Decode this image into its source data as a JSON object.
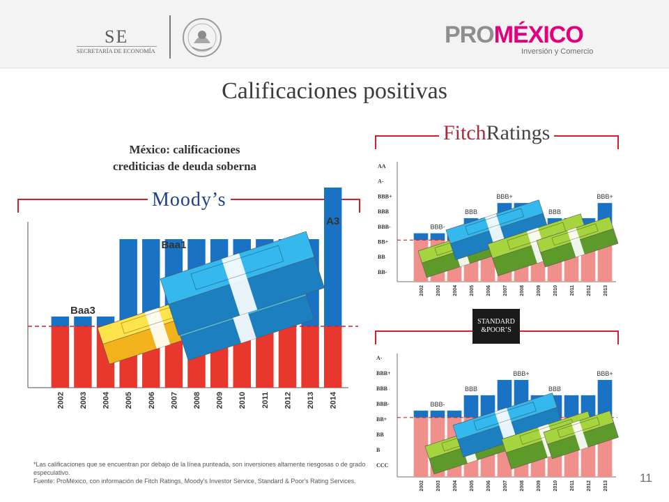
{
  "header": {
    "se_logo_text": "SE",
    "se_logo_subtitle": "SECRETARÍA DE ECONOMÍA",
    "promexico_pro": "PRO",
    "promexico_mexico": "MÉXICO",
    "promexico_tagline": "Inversión y Comercio"
  },
  "title": "Calificaciones positivas",
  "subtitle_line1": "México: calificaciones",
  "subtitle_line2": "crediticias de deuda soberna",
  "logos": {
    "moodys": "Moody’s",
    "fitch_a": "Fitch",
    "fitch_b": "Ratings",
    "sp_line1": "STANDARD",
    "sp_line2": "&POOR’S"
  },
  "colors": {
    "bar_blue": "#1a72c4",
    "bar_red": "#e8372d",
    "bar_pink": "#f0908a",
    "dash_red": "#d0202e",
    "frame_red": "#d11f2e"
  },
  "chart_data": [
    {
      "type": "bar",
      "agency": "Moody's",
      "categories": [
        "2002",
        "2003",
        "2004",
        "2005",
        "2006",
        "2007",
        "2008",
        "2009",
        "2010",
        "2011",
        "2012",
        "2013",
        "2014"
      ],
      "values": [
        1,
        1,
        1,
        4,
        4,
        4,
        4,
        4,
        4,
        4,
        4,
        4,
        6
      ],
      "labels": [
        {
          "category": "2003",
          "text": "Baa3"
        },
        {
          "category": "2007",
          "text": "Baa1"
        },
        {
          "category": "2014",
          "text": "A3"
        }
      ],
      "investment_grade_threshold": 0.5,
      "grid": false
    },
    {
      "type": "bar",
      "agency": "Fitch Ratings",
      "categories": [
        "2002",
        "2003",
        "2004",
        "2005",
        "2006",
        "2007",
        "2008",
        "2009",
        "2010",
        "2011",
        "2012",
        "2013"
      ],
      "y_ticks": [
        "AA",
        "A-",
        "BBB+",
        "BBB",
        "BBB-",
        "BB+",
        "BB",
        "BB-"
      ],
      "values": [
        "BBB-",
        "BBB-",
        "BBB-",
        "BBB",
        "BBB",
        "BBB+",
        "BBB+",
        "BBB",
        "BBB",
        "BBB",
        "BBB",
        "BBB+"
      ],
      "labels": [
        {
          "category": "2003",
          "text": "BBB-"
        },
        {
          "category": "2005",
          "text": "BBB"
        },
        {
          "category": "2007",
          "text": "BBB+"
        },
        {
          "category": "2010",
          "text": "BBB"
        },
        {
          "category": "2013",
          "text": "BBB+"
        }
      ],
      "investment_grade_threshold": "BBB-",
      "grid": false
    },
    {
      "type": "bar",
      "agency": "Standard & Poor's",
      "categories": [
        "2002",
        "2003",
        "2004",
        "2005",
        "2006",
        "2007",
        "2008",
        "2009",
        "2010",
        "2011",
        "2012",
        "2013"
      ],
      "y_ticks": [
        "A-",
        "BBB+",
        "BBB",
        "BBB-",
        "BB+",
        "BB",
        "B",
        "CCC"
      ],
      "values": [
        "BBB-",
        "BBB-",
        "BBB-",
        "BBB",
        "BBB",
        "BBB+",
        "BBB+",
        "BBB",
        "BBB",
        "BBB",
        "BBB",
        "BBB+"
      ],
      "labels": [
        {
          "category": "2003",
          "text": "BBB-"
        },
        {
          "category": "2005",
          "text": "BBB"
        },
        {
          "category": "2008",
          "text": "BBB+"
        },
        {
          "category": "2010",
          "text": "BBB"
        },
        {
          "category": "2013",
          "text": "BBB+"
        }
      ],
      "investment_grade_threshold": "BBB-",
      "grid": false
    }
  ],
  "footnote_line1": "*Las calificaciones que se encuentran por debajo de la línea punteada, son inversiones altamente riesgosas o de grado especulativo.",
  "footnote_line2": "Fuente: ProMéxico, con información de Fitch Ratings, Moody's Investor Service, Standard & Poor's Rating Services.",
  "page_number": "11"
}
